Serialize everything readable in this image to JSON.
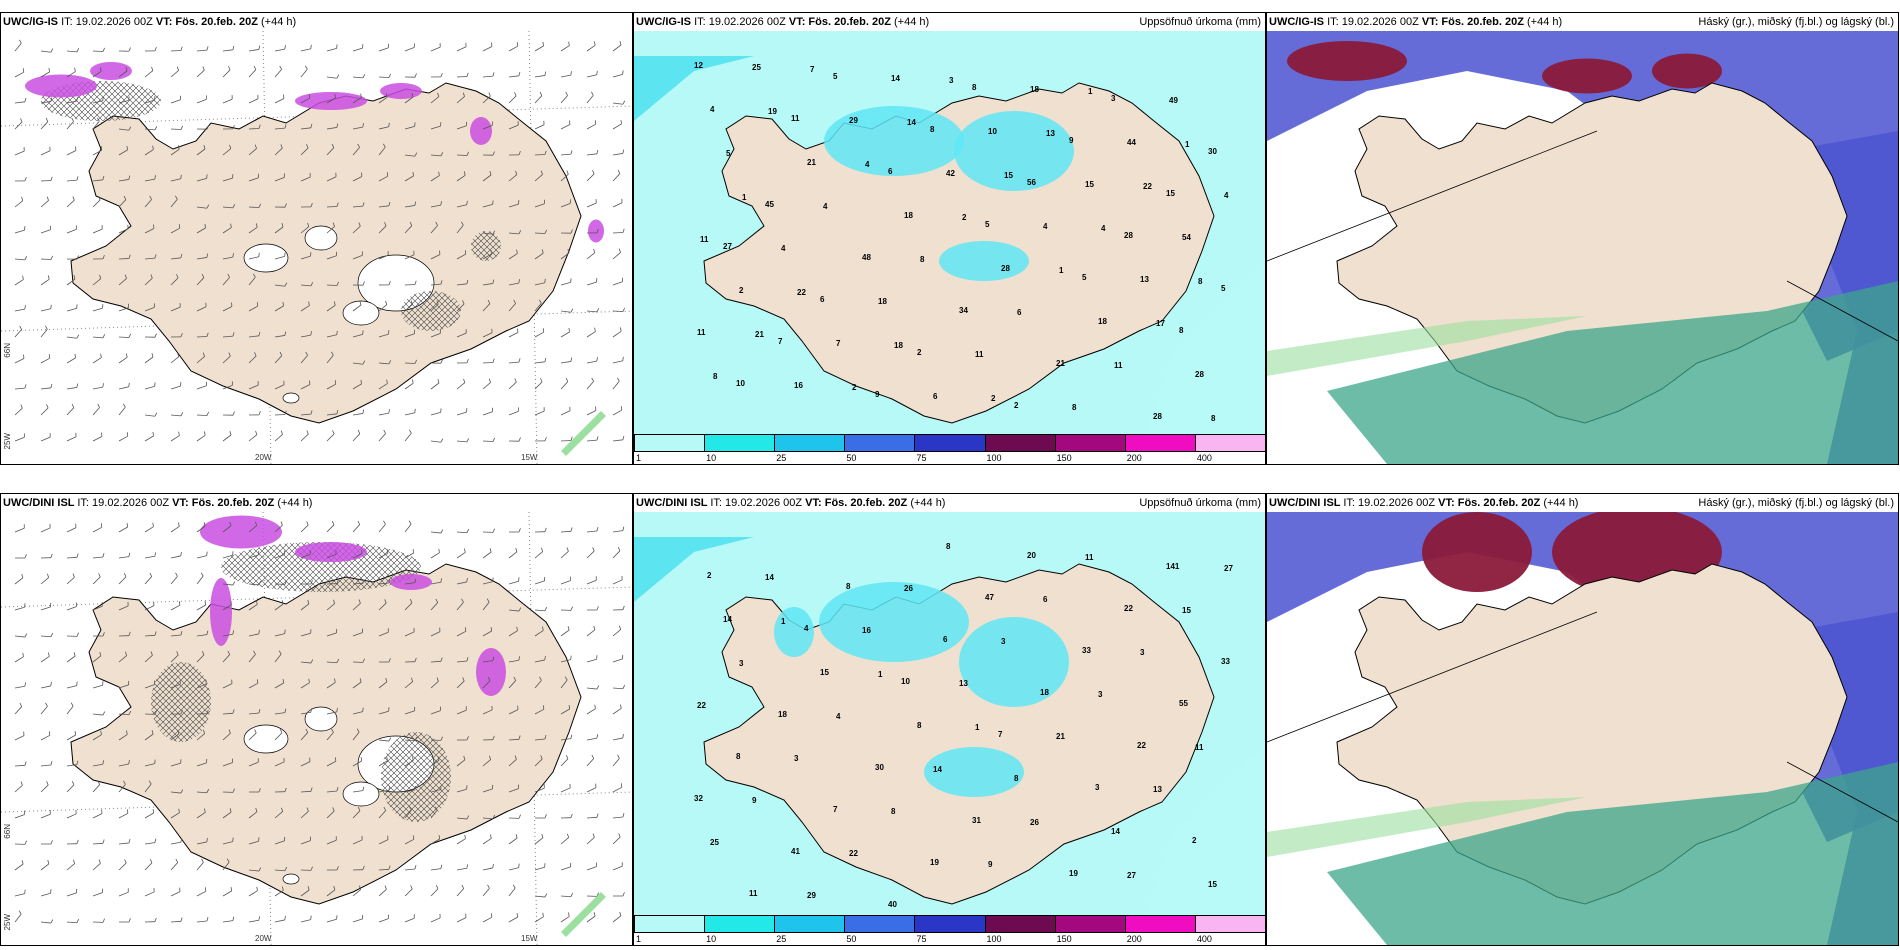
{
  "panels": [
    {
      "model": "UWC/IG-IS",
      "init": "IT: 19.02.2026 00Z",
      "vt_label": "VT:",
      "valid": "Fös. 20.feb. 20Z",
      "lead": "(+44 h)",
      "right_title": ""
    },
    {
      "model": "UWC/IG-IS",
      "init": "IT: 19.02.2026 00Z",
      "vt_label": "VT:",
      "valid": "Fös. 20.feb. 20Z",
      "lead": "(+44 h)",
      "right_title": "Uppsöfnuð úrkoma (mm)"
    },
    {
      "model": "UWC/IG-IS",
      "init": "IT: 19.02.2026 00Z",
      "vt_label": "VT:",
      "valid": "Fös. 20.feb. 20Z",
      "lead": "(+44 h)",
      "right_title": "Háský (gr.), miðský (fj.bl.) og lágský (bl.)"
    },
    {
      "model": "UWC/DINI ISL",
      "init": "IT: 19.02.2026 00Z",
      "vt_label": "VT:",
      "valid": "Fös. 20.feb. 20Z",
      "lead": "(+44 h)",
      "right_title": ""
    },
    {
      "model": "UWC/DINI ISL",
      "init": "IT: 19.02.2026 00Z",
      "vt_label": "VT:",
      "valid": "Fös. 20.feb. 20Z",
      "lead": "(+44 h)",
      "right_title": "Uppsöfnuð úrkoma (mm)"
    },
    {
      "model": "UWC/DINI ISL",
      "init": "IT: 19.02.2026 00Z",
      "vt_label": "VT:",
      "valid": "Fös. 20.feb. 20Z",
      "lead": "(+44 h)",
      "right_title": "Háský (gr.), miðský (fj.bl.) og lágský (bl.)"
    }
  ],
  "axis_labels": {
    "lat66": "66N",
    "lon25": "25W",
    "lon20": "20W",
    "lon15": "15W"
  },
  "colorbar": {
    "ticks": [
      "1",
      "10",
      "25",
      "50",
      "75",
      "100",
      "150",
      "200",
      "400"
    ],
    "colors": [
      "#b7f9f7",
      "#22e8e8",
      "#1ec4ec",
      "#3a6ee6",
      "#2a36c6",
      "#6e0a50",
      "#a4087e",
      "#f00cc0",
      "#f9b4f2"
    ]
  },
  "precip_numbers_top": [
    "12",
    "11",
    "6",
    "5",
    "5",
    "8",
    "10",
    "5",
    "8",
    "56",
    "28",
    "5",
    "7",
    "9",
    "8",
    "9",
    "15",
    "27",
    "6",
    "2",
    "2",
    "3",
    "30",
    "45",
    "48",
    "34",
    "21",
    "28",
    "4",
    "21",
    "18",
    "28",
    "18",
    "28",
    "25",
    "29",
    "42",
    "4",
    "13",
    "11",
    "16",
    "14",
    "10",
    "15",
    "54",
    "2",
    "7",
    "6",
    "18",
    "44",
    "4",
    "4",
    "18",
    "11",
    "8",
    "49",
    "5",
    "4",
    "8",
    "6",
    "11",
    "8",
    "19",
    "4",
    "2",
    "1",
    "17",
    "8",
    "7",
    "14",
    "15",
    "4",
    "8",
    "21",
    "2",
    "3",
    "13",
    "22",
    "11",
    "22",
    "18",
    "2",
    "1",
    "1",
    "1"
  ],
  "precip_numbers_bottom": [
    "2",
    "4",
    "10",
    "7",
    "3",
    "2",
    "11",
    "8",
    "6",
    "18",
    "22",
    "32",
    "41",
    "40",
    "47",
    "33",
    "55",
    "8",
    "7",
    "19",
    "20",
    "22",
    "33",
    "18",
    "30",
    "31",
    "19",
    "141",
    "14",
    "15",
    "8",
    "8",
    "14",
    "15",
    "14",
    "16",
    "13",
    "21",
    "13",
    "25",
    "29",
    "26",
    "3",
    "3",
    "11",
    "9",
    "22",
    "8",
    "6",
    "3",
    "22",
    "3",
    "8",
    "9",
    "11",
    "15",
    "3",
    "4",
    "14",
    "26",
    "27",
    "27",
    "1",
    "1",
    "1"
  ]
}
